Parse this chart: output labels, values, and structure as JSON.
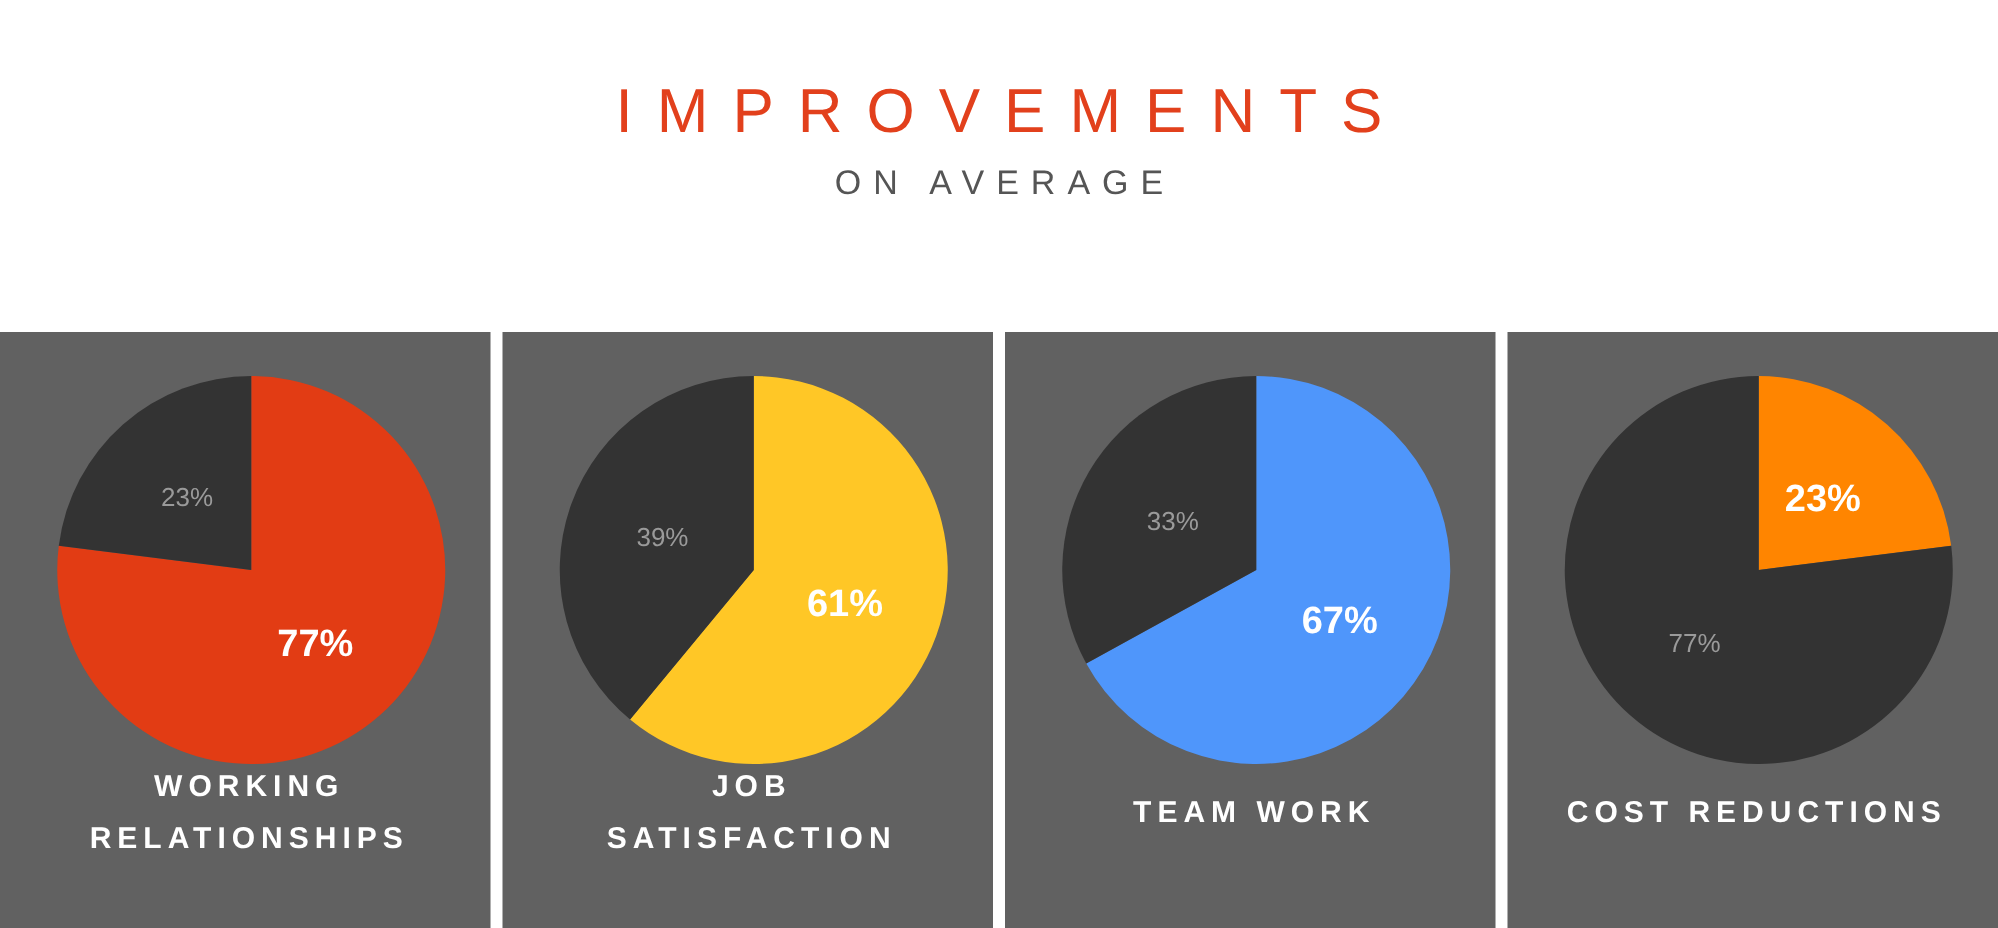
{
  "chart_data": [
    {
      "type": "other",
      "title": "IMPROVEMENTS",
      "subtitle": "ON AVERAGE"
    },
    {
      "type": "pie",
      "title": "WORKING RELATIONSHIPS",
      "categories": [
        null,
        null
      ],
      "values": [
        77,
        23
      ],
      "colors": [
        "#e23c14",
        "#333333"
      ],
      "value_labels": [
        "77%",
        "23%"
      ]
    },
    {
      "type": "pie",
      "title": "JOB SATISFACTION",
      "categories": [
        null,
        null
      ],
      "values": [
        61,
        39
      ],
      "colors": [
        "#ffc726",
        "#333333"
      ],
      "value_labels": [
        "61%",
        "39%"
      ]
    },
    {
      "type": "pie",
      "title": "TEAM WORK",
      "categories": [
        null,
        null
      ],
      "values": [
        67,
        33
      ],
      "colors": [
        "#4f96fb",
        "#333333"
      ],
      "value_labels": [
        "67%",
        "33%"
      ]
    },
    {
      "type": "pie",
      "title": "COST REDUCTIONS",
      "categories": [
        null,
        null
      ],
      "values": [
        23,
        77
      ],
      "colors": [
        "#ff8500",
        "#333333"
      ],
      "value_labels": [
        "23%",
        "77%"
      ]
    }
  ]
}
